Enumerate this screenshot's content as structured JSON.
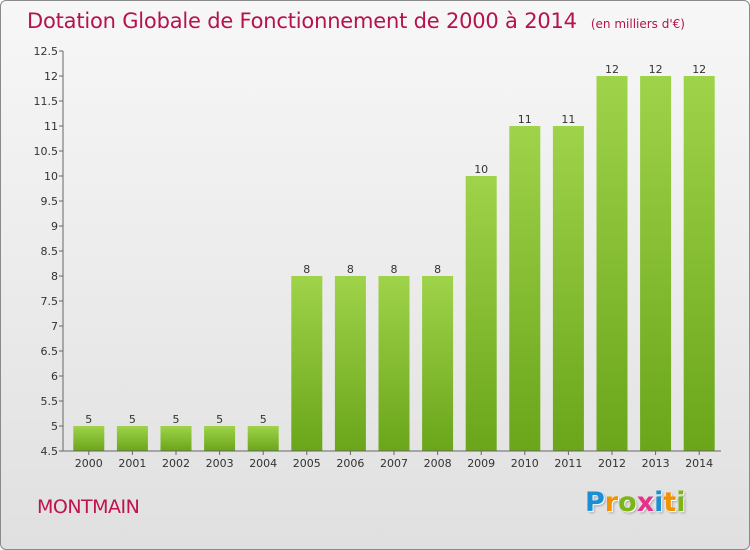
{
  "header": {
    "title": "Dotation Globale de Fonctionnement de 2000 à 2014",
    "unit": "(en milliers d'€)"
  },
  "footer": {
    "commune": "MONTMAIN",
    "logo_text": "Proxiti",
    "logo_letters": [
      {
        "ch": "P",
        "color": "#1a8fd6"
      },
      {
        "ch": "r",
        "color": "#f39200"
      },
      {
        "ch": "o",
        "color": "#7cb518"
      },
      {
        "ch": "x",
        "color": "#e8308a"
      },
      {
        "ch": "i",
        "color": "#1a8fd6"
      },
      {
        "ch": "t",
        "color": "#f39200"
      },
      {
        "ch": "i",
        "color": "#7cb518"
      }
    ]
  },
  "colors": {
    "title": "#b5124e",
    "bar_light": "#9fd34a",
    "bar_dark": "#6aa51a",
    "axis": "#666666",
    "label": "#333333"
  },
  "chart_data": {
    "type": "bar",
    "title": "Dotation Globale de Fonctionnement de 2000 à 2014",
    "subtitle": "(en milliers d'€)",
    "xlabel": "",
    "ylabel": "",
    "categories": [
      "2000",
      "2001",
      "2002",
      "2003",
      "2004",
      "2005",
      "2006",
      "2007",
      "2008",
      "2009",
      "2010",
      "2011",
      "2012",
      "2013",
      "2014"
    ],
    "values": [
      5,
      5,
      5,
      5,
      5,
      8,
      8,
      8,
      8,
      10,
      11,
      11,
      12,
      12,
      12
    ],
    "ylim": [
      4.5,
      12.5
    ],
    "yticks": [
      "4.5",
      "5",
      "5.5",
      "6",
      "6.5",
      "7",
      "7.5",
      "8",
      "8.5",
      "9",
      "9.5",
      "10",
      "10.5",
      "11",
      "11.5",
      "12",
      "12.5"
    ],
    "grid": false,
    "legend": "none"
  }
}
